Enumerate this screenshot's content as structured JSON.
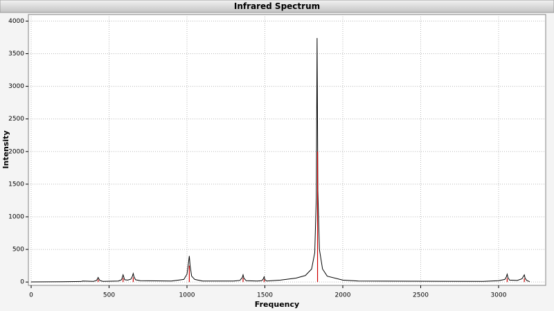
{
  "chart_data": {
    "type": "line",
    "title": "Infrared Spectrum",
    "x_label": "Frequency",
    "y_label": "Intensity",
    "xlim": [
      0,
      3300
    ],
    "ylim": [
      -30,
      4100
    ],
    "xticks": [
      0,
      500,
      1000,
      1500,
      2000,
      2500,
      3000
    ],
    "yticks": [
      0,
      500,
      1000,
      1500,
      2000,
      2500,
      3000,
      3500,
      4000
    ],
    "grid": true,
    "series": [
      {
        "style": "line",
        "color": "#000000",
        "x": [
          0,
          200,
          320,
          330,
          400,
          420,
          430,
          440,
          460,
          560,
          580,
          590,
          600,
          620,
          640,
          650,
          655,
          660,
          670,
          700,
          900,
          980,
          1000,
          1010,
          1015,
          1020,
          1030,
          1050,
          1100,
          1300,
          1340,
          1355,
          1360,
          1365,
          1380,
          1450,
          1480,
          1490,
          1495,
          1500,
          1510,
          1600,
          1700,
          1760,
          1800,
          1820,
          1830,
          1835,
          1840,
          1850,
          1870,
          1900,
          2000,
          2100,
          2900,
          3000,
          3040,
          3050,
          3055,
          3060,
          3070,
          3120,
          3150,
          3160,
          3165,
          3170,
          3180,
          3200
        ],
        "values": [
          2,
          5,
          8,
          15,
          10,
          25,
          70,
          25,
          10,
          15,
          35,
          110,
          35,
          30,
          45,
          90,
          130,
          80,
          35,
          20,
          15,
          40,
          120,
          300,
          400,
          250,
          90,
          40,
          15,
          15,
          25,
          70,
          110,
          60,
          20,
          15,
          20,
          50,
          80,
          40,
          15,
          30,
          60,
          100,
          200,
          450,
          1300,
          3740,
          1400,
          500,
          200,
          90,
          30,
          15,
          10,
          20,
          40,
          80,
          120,
          70,
          30,
          25,
          50,
          90,
          110,
          60,
          25,
          5
        ]
      },
      {
        "style": "sticks",
        "color": "#cc0000",
        "x": [
          430,
          590,
          655,
          1015,
          1360,
          1495,
          1838,
          3055,
          3165
        ],
        "values": [
          40,
          60,
          70,
          250,
          60,
          40,
          2000,
          60,
          55
        ]
      }
    ]
  }
}
